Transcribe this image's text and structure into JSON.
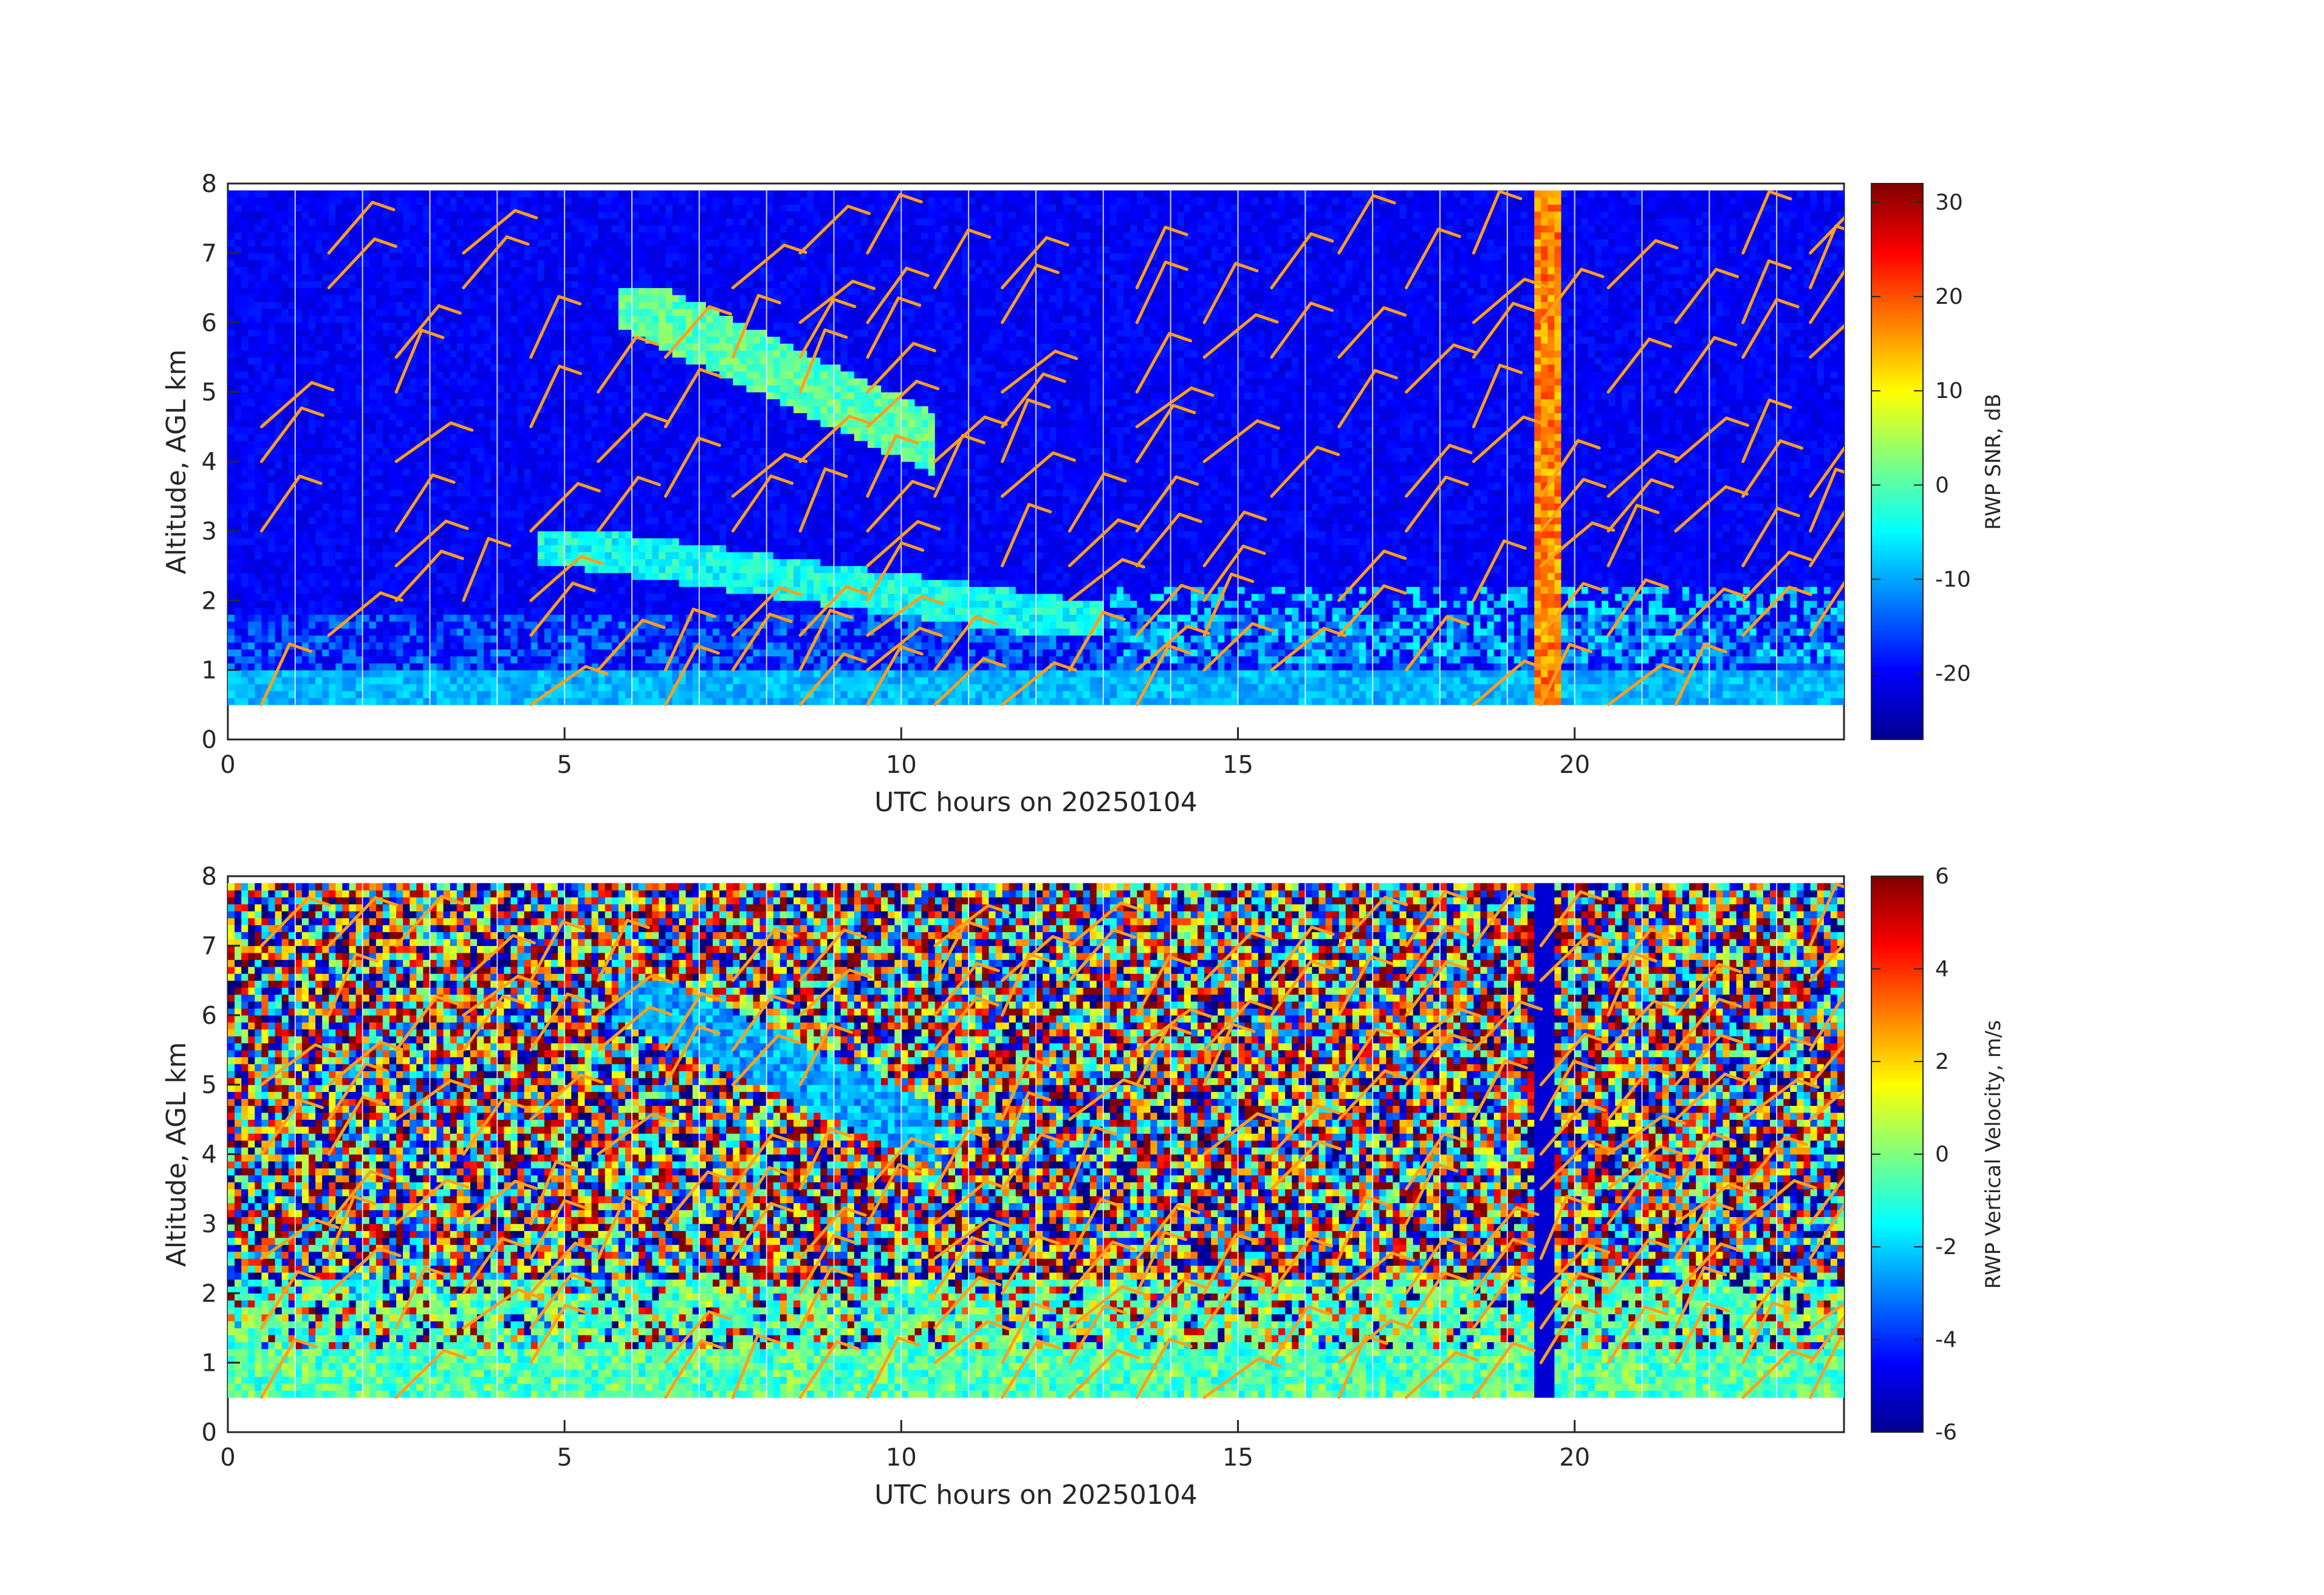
{
  "chart_data": [
    {
      "type": "heatmap",
      "panel": "top",
      "variable": "RWP SNR",
      "xlabel": "UTC hours on 20250104",
      "ylabel": "Altitude, AGL km",
      "xlim": [
        0,
        24
      ],
      "ylim": [
        0,
        8
      ],
      "xticks": [
        0,
        5,
        10,
        15,
        20
      ],
      "yticks": [
        0,
        1,
        2,
        3,
        4,
        5,
        6,
        7,
        8
      ],
      "data_altitude_range_km": [
        0.5,
        7.9
      ],
      "colorbar": {
        "label": "RWP SNR, dB",
        "range": [
          -27,
          32
        ],
        "ticks": [
          -20,
          -10,
          0,
          10,
          20,
          30
        ],
        "colormap": "jet",
        "colors": [
          "#00008f",
          "#0000ff",
          "#00ffff",
          "#ffff00",
          "#ff0000",
          "#800000"
        ]
      },
      "background_color": "#0a2bd6",
      "features": [
        {
          "name": "boundary layer echo",
          "x_range": [
            0,
            24
          ],
          "alt_km": [
            0.5,
            1.8
          ],
          "value_db": -12
        },
        {
          "name": "mid-level layer",
          "x_range": [
            4.5,
            13
          ],
          "alt_km": [
            1.5,
            3.0
          ],
          "value_db": -8
        },
        {
          "name": "upper cloud band",
          "x_range": [
            5.8,
            10.5
          ],
          "alt_km": [
            3.5,
            6.5
          ],
          "value_db": -2
        },
        {
          "name": "strong echo column",
          "x_range": [
            19.4,
            19.8
          ],
          "alt_km": [
            0.5,
            7.9
          ],
          "value_db": 15
        }
      ],
      "wind_barbs_color": "#ff9f1c"
    },
    {
      "type": "heatmap",
      "panel": "bottom",
      "variable": "RWP Vertical Velocity",
      "xlabel": "UTC hours on 20250104",
      "ylabel": "Altitude, AGL km",
      "xlim": [
        0,
        24
      ],
      "ylim": [
        0,
        8
      ],
      "xticks": [
        0,
        5,
        10,
        15,
        20
      ],
      "yticks": [
        0,
        1,
        2,
        3,
        4,
        5,
        6,
        7,
        8
      ],
      "data_altitude_range_km": [
        0.5,
        7.9
      ],
      "colorbar": {
        "label": "RWP Vertical Velocity, m/s",
        "range": [
          -6,
          6
        ],
        "ticks": [
          -6,
          -4,
          -2,
          0,
          2,
          4,
          6
        ],
        "colormap": "jet",
        "colors": [
          "#00008f",
          "#0000ff",
          "#00ffff",
          "#ffff00",
          "#ff0000",
          "#800000"
        ]
      },
      "features": [
        {
          "name": "near-zero velocity layer",
          "x_range": [
            0,
            24
          ],
          "alt_km": [
            0.5,
            2.2
          ],
          "value_ms": -0.5
        },
        {
          "name": "downward motion in cloud",
          "x_range": [
            5.8,
            10.5
          ],
          "alt_km": [
            3.5,
            6.5
          ],
          "value_ms": -2.5
        },
        {
          "name": "noise field",
          "x_range": [
            0,
            24
          ],
          "alt_km": [
            2.2,
            7.9
          ],
          "value_ms": "random"
        }
      ],
      "wind_barbs_color": "#ff9f1c"
    }
  ]
}
